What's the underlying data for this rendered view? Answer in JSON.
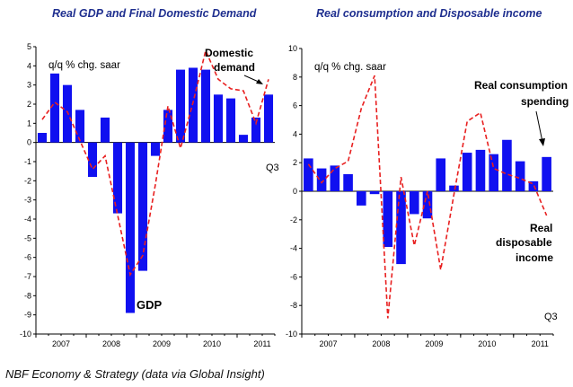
{
  "source_note": "NBF Economy & Strategy (data via Global Insight)",
  "colors": {
    "bar": "#1010f0",
    "line": "#e82020",
    "axis": "#000000",
    "title": "#1f2f8f"
  },
  "chart_data": [
    {
      "type": "bar",
      "title": "Real GDP and Final Domestic Demand",
      "unit_label": "q/q % chg. saar",
      "ylim": [
        -10,
        5
      ],
      "y_ticks": [
        5,
        4,
        3,
        2,
        1,
        0,
        -1,
        -2,
        -3,
        -4,
        -5,
        -6,
        -7,
        -8,
        -9,
        -10
      ],
      "x_ticks": [
        "2007",
        "2008",
        "2009",
        "2010",
        "2011"
      ],
      "quarters": [
        "2007Q1",
        "2007Q2",
        "2007Q3",
        "2007Q4",
        "2008Q1",
        "2008Q2",
        "2008Q3",
        "2008Q4",
        "2009Q1",
        "2009Q2",
        "2009Q3",
        "2009Q4",
        "2010Q1",
        "2010Q2",
        "2010Q3",
        "2010Q4",
        "2011Q1",
        "2011Q2",
        "2011Q3"
      ],
      "period_marker": "Q3",
      "series": [
        {
          "name": "GDP",
          "kind": "bar",
          "values": [
            0.5,
            3.6,
            3.0,
            1.7,
            -1.8,
            1.3,
            -3.7,
            -8.9,
            -6.7,
            -0.7,
            1.7,
            3.8,
            3.9,
            3.8,
            2.5,
            2.3,
            0.4,
            1.3,
            2.5
          ]
        },
        {
          "name": "Domestic demand",
          "kind": "line",
          "values": [
            1.2,
            2.1,
            1.6,
            0.1,
            -1.4,
            -0.7,
            -3.8,
            -6.9,
            -5.9,
            -2.2,
            1.9,
            -0.3,
            2.1,
            4.8,
            3.3,
            2.8,
            2.7,
            1.0,
            3.3
          ]
        }
      ],
      "annotations": {
        "line_label": "Domestic demand",
        "bar_label": "GDP"
      }
    },
    {
      "type": "bar",
      "title": "Real consumption and Disposable income",
      "unit_label": "q/q % chg. saar",
      "ylim": [
        -10,
        10
      ],
      "y_ticks": [
        10,
        8,
        6,
        4,
        2,
        0,
        -2,
        -4,
        -6,
        -8,
        -10
      ],
      "x_ticks": [
        "2007",
        "2008",
        "2009",
        "2010",
        "2011"
      ],
      "quarters": [
        "2007Q1",
        "2007Q2",
        "2007Q3",
        "2007Q4",
        "2008Q1",
        "2008Q2",
        "2008Q3",
        "2008Q4",
        "2009Q1",
        "2009Q2",
        "2009Q3",
        "2009Q4",
        "2010Q1",
        "2010Q2",
        "2010Q3",
        "2010Q4",
        "2011Q1",
        "2011Q2",
        "2011Q3"
      ],
      "period_marker": "Q3",
      "series": [
        {
          "name": "Real consumption spending",
          "kind": "bar",
          "values": [
            2.3,
            1.6,
            1.8,
            1.2,
            -1.0,
            -0.2,
            -3.9,
            -5.1,
            -1.6,
            -1.9,
            2.3,
            0.4,
            2.7,
            2.9,
            2.6,
            3.6,
            2.1,
            0.7,
            2.4
          ]
        },
        {
          "name": "Real disposable income",
          "kind": "line",
          "values": [
            1.9,
            0.6,
            1.6,
            2.1,
            5.8,
            8.1,
            -8.9,
            1.0,
            -3.8,
            0.0,
            -5.5,
            -0.2,
            4.9,
            5.5,
            1.6,
            1.2,
            0.9,
            0.5,
            -1.7
          ]
        }
      ],
      "annotations": {
        "bar_label_line1": "Real consumption",
        "bar_label_line2": "spending",
        "line_label_line1": "Real",
        "line_label_line2": "disposable",
        "line_label_line3": "income"
      }
    }
  ]
}
